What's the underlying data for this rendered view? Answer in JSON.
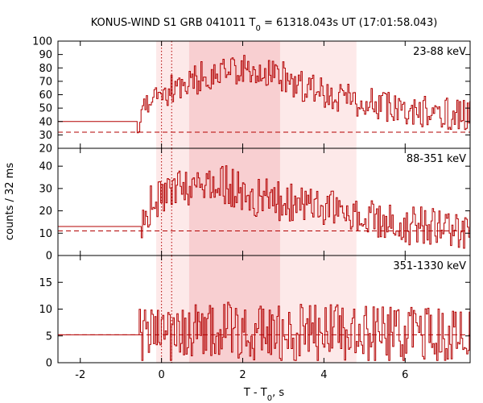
{
  "chart_data": {
    "type": "line",
    "title_parts": [
      "KONUS-WIND S1 GRB 041011 T",
      "0",
      " = 61318.043s UT (17:01:58.043)"
    ],
    "xlabel_parts": [
      "T - T",
      "0",
      ", s"
    ],
    "ylabel": "counts / 32 ms",
    "xlim": [
      -2.55,
      7.6
    ],
    "x_ticks": [
      -2,
      0,
      2,
      4,
      6
    ],
    "bin_width_s": 0.032,
    "colors": {
      "curve": "#b30000",
      "background_line": "#b30000",
      "band_light": "#fde9e9",
      "band_dark": "#f8cfd1",
      "marker_line": "#b30000"
    },
    "shaded_intervals": [
      {
        "from": -0.13,
        "to": 4.8,
        "shade": "light"
      },
      {
        "from": 0.68,
        "to": 2.92,
        "shade": "dark"
      }
    ],
    "vertical_markers": [
      0.0,
      0.25
    ],
    "panels": [
      {
        "label": "23-88 keV",
        "ylim": [
          20,
          100
        ],
        "y_ticks": [
          20,
          30,
          40,
          50,
          60,
          70,
          80,
          90,
          100
        ],
        "background_level": 32,
        "pre_trigger_level": 40,
        "lc_start": -0.6,
        "envelope": [
          [
            -0.6,
            40
          ],
          [
            -0.45,
            44
          ],
          [
            -0.2,
            54
          ],
          [
            0.3,
            64
          ],
          [
            0.9,
            72
          ],
          [
            1.5,
            78
          ],
          [
            2.2,
            78
          ],
          [
            2.9,
            74
          ],
          [
            3.5,
            66
          ],
          [
            4.2,
            60
          ],
          [
            4.8,
            56
          ],
          [
            5.5,
            51
          ],
          [
            6.5,
            47
          ],
          [
            7.6,
            44
          ]
        ],
        "noise_amp": 12
      },
      {
        "label": "88-351 keV",
        "ylim": [
          0,
          48
        ],
        "y_ticks": [
          0,
          10,
          20,
          30,
          40
        ],
        "background_level": 11,
        "pre_trigger_level": 13,
        "lc_start": -0.5,
        "envelope": [
          [
            -0.5,
            16
          ],
          [
            -0.2,
            24
          ],
          [
            0.3,
            30
          ],
          [
            0.9,
            32
          ],
          [
            1.5,
            32
          ],
          [
            2.2,
            27
          ],
          [
            2.9,
            24
          ],
          [
            3.5,
            22
          ],
          [
            4.2,
            20
          ],
          [
            4.8,
            17
          ],
          [
            5.5,
            15
          ],
          [
            6.5,
            13
          ],
          [
            7.6,
            12
          ]
        ],
        "noise_amp": 9
      },
      {
        "label": "351-1330 keV",
        "ylim": [
          0,
          20
        ],
        "y_ticks": [
          0,
          5,
          10,
          15
        ],
        "background_level": 5.2,
        "pre_trigger_level": 5.2,
        "lc_start": -0.55,
        "envelope": [
          [
            -0.55,
            4.8
          ],
          [
            0.5,
            5.5
          ],
          [
            1.5,
            6
          ],
          [
            3,
            5.5
          ],
          [
            5,
            5.2
          ],
          [
            7.6,
            5
          ]
        ],
        "noise_amp": 5.5
      }
    ]
  }
}
